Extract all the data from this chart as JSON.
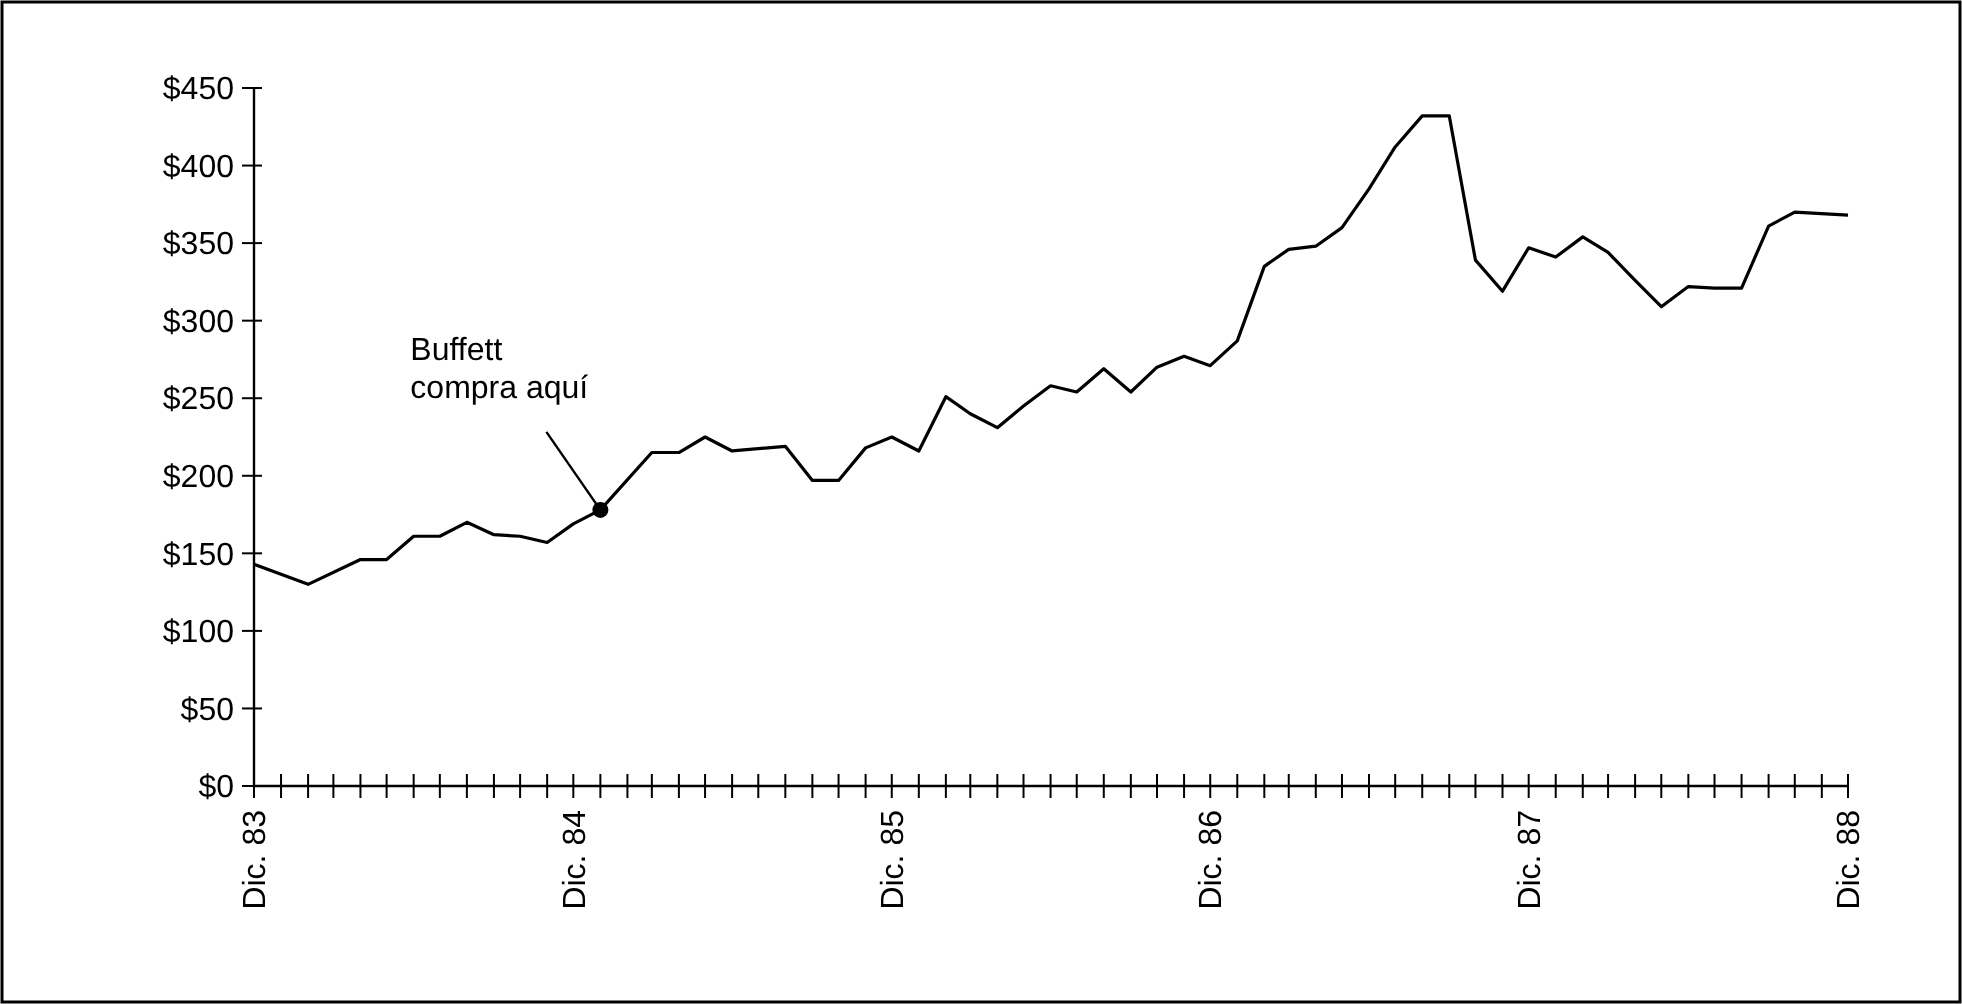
{
  "chart_data": {
    "type": "line",
    "x": [
      "1983-12",
      "1984-02",
      "1984-04",
      "1984-05",
      "1984-06",
      "1984-07",
      "1984-08",
      "1984-09",
      "1984-10",
      "1984-11",
      "1984-12",
      "1985-01",
      "1985-03",
      "1985-04",
      "1985-05",
      "1985-06",
      "1985-08",
      "1985-09",
      "1985-10",
      "1985-11",
      "1985-12",
      "1986-01",
      "1986-02",
      "1986-03",
      "1986-04",
      "1986-05",
      "1986-06",
      "1986-07",
      "1986-08",
      "1986-09",
      "1986-10",
      "1986-11",
      "1986-12",
      "1987-01",
      "1987-02",
      "1987-03",
      "1987-04",
      "1987-05",
      "1987-06",
      "1987-07",
      "1987-08",
      "1987-09",
      "1987-10",
      "1987-11",
      "1987-12",
      "1988-01",
      "1988-02",
      "1988-03",
      "1988-04",
      "1988-05",
      "1988-06",
      "1988-07",
      "1988-08",
      "1988-09",
      "1988-10",
      "1988-12"
    ],
    "series": [
      {
        "color": "#000000",
        "values": [
          143,
          130,
          146,
          146,
          161,
          161,
          170,
          162,
          161,
          157,
          169,
          178,
          215,
          215,
          225,
          216,
          219,
          197,
          197,
          218,
          225,
          216,
          251,
          240,
          231,
          245,
          258,
          254,
          269,
          254,
          270,
          277,
          271,
          287,
          335,
          346,
          348,
          360,
          385,
          412,
          432,
          432,
          339,
          319,
          347,
          341,
          354,
          344,
          326,
          309,
          322,
          321,
          321,
          361,
          370,
          368
        ]
      }
    ],
    "xlim": [
      "1983-12",
      "1988-12"
    ],
    "xticks": [
      {
        "value": "1983-12",
        "label": "Dic. 83"
      },
      {
        "value": "1984-01",
        "label": null
      },
      {
        "value": "1984-02",
        "label": null
      },
      {
        "value": "1984-03",
        "label": null
      },
      {
        "value": "1984-04",
        "label": null
      },
      {
        "value": "1984-05",
        "label": null
      },
      {
        "value": "1984-06",
        "label": null
      },
      {
        "value": "1984-07",
        "label": null
      },
      {
        "value": "1984-08",
        "label": null
      },
      {
        "value": "1984-09",
        "label": null
      },
      {
        "value": "1984-10",
        "label": null
      },
      {
        "value": "1984-11",
        "label": null
      },
      {
        "value": "1984-12",
        "label": "Dic. 84"
      },
      {
        "value": "1985-01",
        "label": null
      },
      {
        "value": "1985-02",
        "label": null
      },
      {
        "value": "1985-03",
        "label": null
      },
      {
        "value": "1985-04",
        "label": null
      },
      {
        "value": "1985-05",
        "label": null
      },
      {
        "value": "1985-06",
        "label": null
      },
      {
        "value": "1985-07",
        "label": null
      },
      {
        "value": "1985-08",
        "label": null
      },
      {
        "value": "1985-09",
        "label": null
      },
      {
        "value": "1985-10",
        "label": null
      },
      {
        "value": "1985-11",
        "label": null
      },
      {
        "value": "1985-12",
        "label": "Dic. 85"
      },
      {
        "value": "1986-01",
        "label": null
      },
      {
        "value": "1986-02",
        "label": null
      },
      {
        "value": "1986-03",
        "label": null
      },
      {
        "value": "1986-04",
        "label": null
      },
      {
        "value": "1986-05",
        "label": null
      },
      {
        "value": "1986-06",
        "label": null
      },
      {
        "value": "1986-07",
        "label": null
      },
      {
        "value": "1986-08",
        "label": null
      },
      {
        "value": "1986-09",
        "label": null
      },
      {
        "value": "1986-10",
        "label": null
      },
      {
        "value": "1986-11",
        "label": null
      },
      {
        "value": "1986-12",
        "label": "Dic. 86"
      },
      {
        "value": "1987-01",
        "label": null
      },
      {
        "value": "1987-02",
        "label": null
      },
      {
        "value": "1987-03",
        "label": null
      },
      {
        "value": "1987-04",
        "label": null
      },
      {
        "value": "1987-05",
        "label": null
      },
      {
        "value": "1987-06",
        "label": null
      },
      {
        "value": "1987-07",
        "label": null
      },
      {
        "value": "1987-08",
        "label": null
      },
      {
        "value": "1987-09",
        "label": null
      },
      {
        "value": "1987-10",
        "label": null
      },
      {
        "value": "1987-11",
        "label": null
      },
      {
        "value": "1987-12",
        "label": "Dic. 87"
      },
      {
        "value": "1988-01",
        "label": null
      },
      {
        "value": "1988-02",
        "label": null
      },
      {
        "value": "1988-03",
        "label": null
      },
      {
        "value": "1988-04",
        "label": null
      },
      {
        "value": "1988-05",
        "label": null
      },
      {
        "value": "1988-06",
        "label": null
      },
      {
        "value": "1988-07",
        "label": null
      },
      {
        "value": "1988-08",
        "label": null
      },
      {
        "value": "1988-09",
        "label": null
      },
      {
        "value": "1988-10",
        "label": null
      },
      {
        "value": "1988-11",
        "label": null
      },
      {
        "value": "1988-12",
        "label": "Dic. 88"
      }
    ],
    "ylim": [
      0,
      450
    ],
    "yticks": [
      {
        "value": 0,
        "label": "$0"
      },
      {
        "value": 50,
        "label": "$50"
      },
      {
        "value": 100,
        "label": "$100"
      },
      {
        "value": 150,
        "label": "$150"
      },
      {
        "value": 200,
        "label": "$200"
      },
      {
        "value": 250,
        "label": "$250"
      },
      {
        "value": 300,
        "label": "$300"
      },
      {
        "value": 350,
        "label": "$350"
      },
      {
        "value": 400,
        "label": "$400"
      },
      {
        "value": 450,
        "label": "$450"
      }
    ],
    "annotations": [
      {
        "text": "Buffett\ncompra aquí",
        "x": "1985-01",
        "y": 178
      }
    ],
    "grid": false,
    "marker": "none",
    "line_style": "solid"
  }
}
